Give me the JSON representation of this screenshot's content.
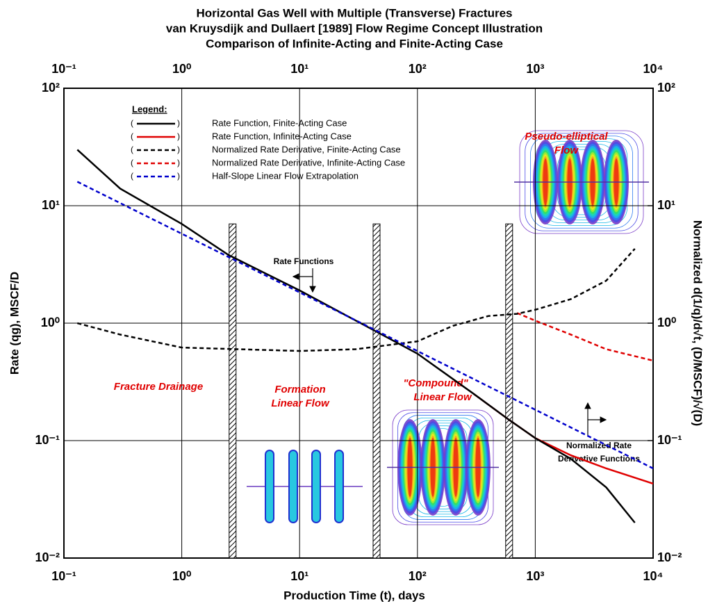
{
  "chart_data": {
    "type": "line",
    "title": [
      "Horizontal Gas Well with Multiple (Transverse) Fractures",
      "van Kruysdijk and Dullaert [1989] Flow Regime Concept Illustration",
      "Comparison of Infinite-Acting and Finite-Acting Case"
    ],
    "xlabel": "Production Time (t), days",
    "ylabel": "Rate (qg), MSCF/D",
    "y2label": "Normalized d(1/q)/d√t, (D/MSCF)/√(D)",
    "xscale": "log",
    "yscale": "log",
    "grid": true,
    "xlim": [
      0.1,
      10000
    ],
    "ylim": [
      0.01,
      100
    ],
    "y2lim": [
      0.01,
      100
    ],
    "xticks": [
      {
        "value": 0.1,
        "label": "10⁻¹"
      },
      {
        "value": 1,
        "label": "10⁰"
      },
      {
        "value": 10,
        "label": "10¹"
      },
      {
        "value": 100,
        "label": "10²"
      },
      {
        "value": 1000,
        "label": "10³"
      },
      {
        "value": 10000,
        "label": "10⁴"
      }
    ],
    "yticks": [
      {
        "value": 0.01,
        "label": "10⁻²"
      },
      {
        "value": 0.1,
        "label": "10⁻¹"
      },
      {
        "value": 1,
        "label": "10⁰"
      },
      {
        "value": 10,
        "label": "10¹"
      },
      {
        "value": 100,
        "label": "10²"
      }
    ],
    "y2ticks": [
      {
        "value": 0.01,
        "label": "10⁻²"
      },
      {
        "value": 0.1,
        "label": "10⁻¹"
      },
      {
        "value": 1,
        "label": "10⁰"
      },
      {
        "value": 10,
        "label": "10¹"
      },
      {
        "value": 100,
        "label": "10²"
      }
    ],
    "legend_title": "Legend:",
    "series": [
      {
        "name": "Rate Function, Finite-Acting Case",
        "color": "#000000",
        "dash": false,
        "x": [
          0.13,
          0.3,
          1,
          2.5,
          10,
          40,
          100,
          300,
          600,
          1000,
          2000,
          4000,
          7000
        ],
        "values": [
          30,
          14,
          7,
          3.8,
          1.9,
          0.9,
          0.55,
          0.25,
          0.15,
          0.105,
          0.07,
          0.04,
          0.02
        ]
      },
      {
        "name": "Rate Function, Infinite-Acting Case",
        "color": "#e00000",
        "dash": false,
        "x": [
          300,
          600,
          1000,
          2000,
          4000,
          10000
        ],
        "values": [
          0.25,
          0.15,
          0.105,
          0.075,
          0.058,
          0.043
        ]
      },
      {
        "name": "Normalized Rate Derivative, Finite-Acting Case",
        "color": "#000000",
        "dash": true,
        "axis": "y2",
        "x": [
          0.13,
          0.3,
          1,
          3,
          10,
          30,
          100,
          200,
          400,
          700,
          1000,
          2000,
          4000,
          7000
        ],
        "values": [
          1.0,
          0.8,
          0.62,
          0.6,
          0.58,
          0.6,
          0.7,
          0.95,
          1.15,
          1.2,
          1.3,
          1.6,
          2.3,
          4.3
        ]
      },
      {
        "name": "Normalized Rate Derivative, Infinite-Acting Case",
        "color": "#e00000",
        "dash": true,
        "axis": "y2",
        "x": [
          700,
          1000,
          2000,
          4000,
          10000
        ],
        "values": [
          1.22,
          1.05,
          0.8,
          0.6,
          0.48
        ]
      },
      {
        "name": "Half-Slope Linear Flow Extrapolation",
        "color": "#0000cc",
        "dash": true,
        "x": [
          0.13,
          10000
        ],
        "values": [
          16,
          0.058
        ]
      }
    ],
    "dividers": {
      "x": [
        2.7,
        45,
        600
      ],
      "top": 7
    },
    "annotations": {
      "rate_functions": "Rate Functions",
      "derivative_functions": [
        "Normalized Rate",
        "Derivative Functions"
      ],
      "fracture_drainage": "Fracture Drainage",
      "formation_linear": [
        "Formation",
        "Linear Flow"
      ],
      "compound_linear": [
        "\"Compound\"",
        "Linear Flow"
      ],
      "pseudo_elliptical": [
        "Pseudo-elliptical",
        "Flow"
      ]
    }
  }
}
